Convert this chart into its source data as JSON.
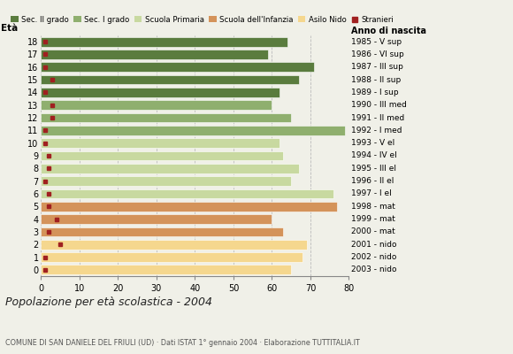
{
  "ages": [
    0,
    1,
    2,
    3,
    4,
    5,
    6,
    7,
    8,
    9,
    10,
    11,
    12,
    13,
    14,
    15,
    16,
    17,
    18
  ],
  "bar_values": [
    65,
    68,
    69,
    63,
    60,
    77,
    76,
    65,
    67,
    63,
    62,
    79,
    65,
    60,
    62,
    67,
    71,
    59,
    64
  ],
  "stranieri_values": [
    1,
    1,
    5,
    2,
    4,
    2,
    2,
    1,
    2,
    2,
    1,
    1,
    3,
    3,
    1,
    3,
    1,
    1,
    1
  ],
  "bar_colors": [
    "#f5d78e",
    "#f5d78e",
    "#f5d78e",
    "#d4935a",
    "#d4935a",
    "#d4935a",
    "#c8d9a0",
    "#c8d9a0",
    "#c8d9a0",
    "#c8d9a0",
    "#c8d9a0",
    "#8faf6e",
    "#8faf6e",
    "#8faf6e",
    "#5a7c3e",
    "#5a7c3e",
    "#5a7c3e",
    "#5a7c3e",
    "#5a7c3e"
  ],
  "right_labels": [
    "2003 - nido",
    "2002 - nido",
    "2001 - nido",
    "2000 - mat",
    "1999 - mat",
    "1998 - mat",
    "1997 - I el",
    "1996 - II el",
    "1995 - III el",
    "1994 - IV el",
    "1993 - V el",
    "1992 - I med",
    "1991 - II med",
    "1990 - III med",
    "1989 - I sup",
    "1988 - II sup",
    "1987 - III sup",
    "1986 - VI sup",
    "1985 - V sup"
  ],
  "xlabel_major": "Popolazione per età scolastica - 2004",
  "xlabel_minor": "COMUNE DI SAN DANIELE DEL FRIULI (UD) · Dati ISTAT 1° gennaio 2004 · Elaborazione TUTTITALIA.IT",
  "ylabel": "Età",
  "ylabel_right": "Anno di nascita",
  "xlim": [
    0,
    80
  ],
  "xticks": [
    0,
    10,
    20,
    30,
    40,
    50,
    60,
    70,
    80
  ],
  "legend_labels": [
    "Sec. II grado",
    "Sec. I grado",
    "Scuola Primaria",
    "Scuola dell'Infanzia",
    "Asilo Nido",
    "Stranieri"
  ],
  "legend_colors": [
    "#5a7c3e",
    "#8faf6e",
    "#c8d9a0",
    "#d4935a",
    "#f5d78e",
    "#a02020"
  ],
  "bg_color": "#f0f0e8",
  "grid_color": "#bbbbbb",
  "stranieri_color": "#a02020",
  "bar_height": 0.75
}
